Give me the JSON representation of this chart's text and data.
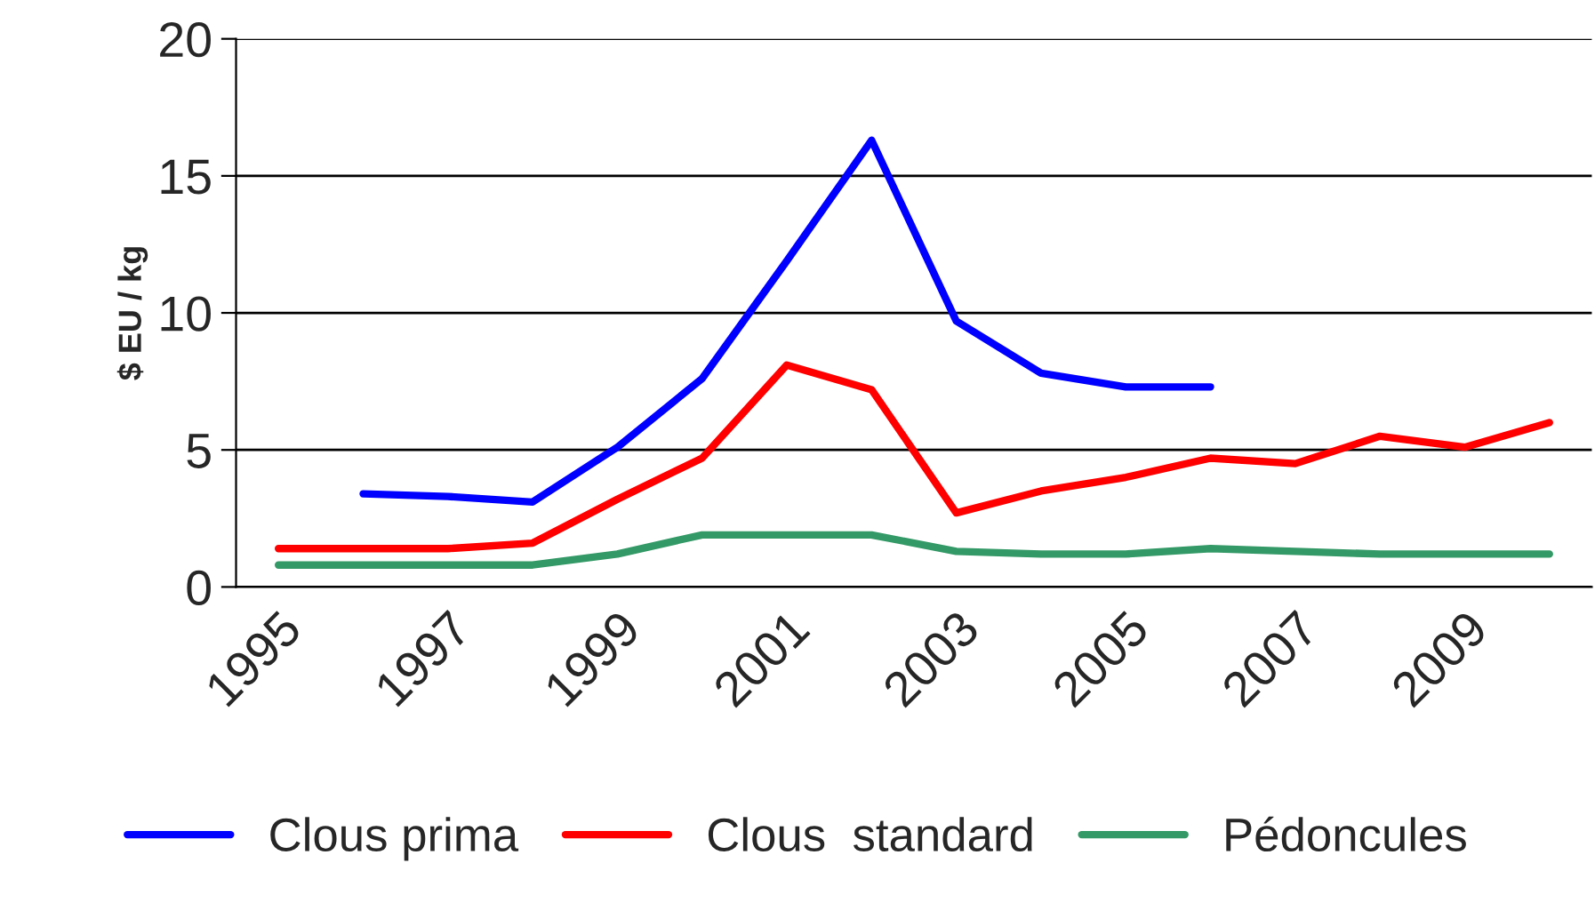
{
  "chart_data": {
    "type": "line",
    "ylabel": "$ EU / kg",
    "categories": [
      "1995",
      null,
      "1997",
      null,
      "1999",
      null,
      "2001",
      null,
      "2003",
      null,
      "2005",
      null,
      "2007",
      null,
      "2009",
      null
    ],
    "series": [
      {
        "name": "Clous prima",
        "color": "#0000ff",
        "values": [
          null,
          3.4,
          3.3,
          3.1,
          5.1,
          7.6,
          11.9,
          16.3,
          9.7,
          7.8,
          7.3,
          7.3,
          null,
          null,
          null,
          null
        ]
      },
      {
        "name": "Clous  standard",
        "color": "#ff0000",
        "values": [
          1.4,
          1.4,
          1.4,
          1.6,
          3.2,
          4.7,
          8.1,
          7.2,
          2.7,
          3.5,
          4.0,
          4.7,
          4.5,
          5.5,
          5.1,
          6.0
        ]
      },
      {
        "name": "Pédoncules",
        "color": "#339966",
        "values": [
          0.8,
          0.8,
          0.8,
          0.8,
          1.2,
          1.9,
          1.9,
          1.9,
          1.3,
          1.2,
          1.2,
          1.4,
          1.3,
          1.2,
          1.2,
          1.2
        ]
      }
    ],
    "ylim": [
      0,
      20
    ],
    "yticks": [
      0,
      5,
      10,
      15,
      20
    ],
    "grid": "y",
    "legend": "bottom",
    "marker": "none",
    "line_style": "solid"
  }
}
